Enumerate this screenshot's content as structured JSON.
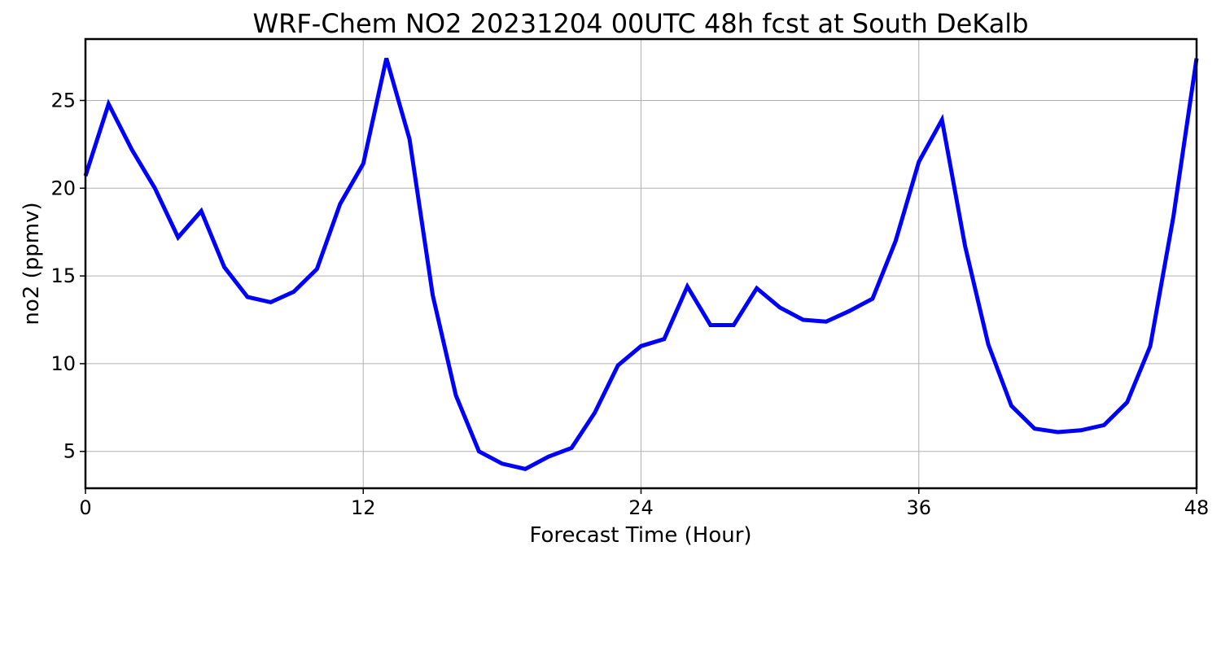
{
  "chart_data": {
    "type": "line",
    "title": "WRF-Chem NO2  20231204 00UTC 48h fcst at South DeKalb",
    "xlabel": "Forecast Time (Hour)",
    "ylabel": "no2  (ppmv)",
    "xlim": [
      0,
      48
    ],
    "ylim": [
      2.9,
      28.5
    ],
    "xticks": [
      0,
      12,
      24,
      36,
      48
    ],
    "yticks": [
      5,
      10,
      15,
      20,
      25
    ],
    "grid": true,
    "series": [
      {
        "color": "#0000ff",
        "x": [
          0,
          1,
          2,
          3,
          4,
          5,
          6,
          7,
          8,
          9,
          10,
          11,
          12,
          13,
          14,
          15,
          16,
          17,
          18,
          19,
          20,
          21,
          22,
          23,
          24,
          25,
          26,
          27,
          28,
          29,
          30,
          31,
          32,
          33,
          34,
          35,
          36,
          37,
          38,
          39,
          40,
          41,
          42,
          43,
          44,
          45,
          46,
          47,
          48
        ],
        "y": [
          20.7,
          24.8,
          22.2,
          20.0,
          17.2,
          18.7,
          15.5,
          13.8,
          13.5,
          14.1,
          15.4,
          19.1,
          21.4,
          27.4,
          22.8,
          13.9,
          8.2,
          5.0,
          4.3,
          4.0,
          4.7,
          5.2,
          7.2,
          9.9,
          11.0,
          11.4,
          14.4,
          12.2,
          12.2,
          14.3,
          13.2,
          12.5,
          12.4,
          13.0,
          13.7,
          17.0,
          21.5,
          23.9,
          16.7,
          11.1,
          7.6,
          6.3,
          6.1,
          6.2,
          6.5,
          7.8,
          11.0,
          18.4,
          27.4
        ]
      }
    ]
  }
}
